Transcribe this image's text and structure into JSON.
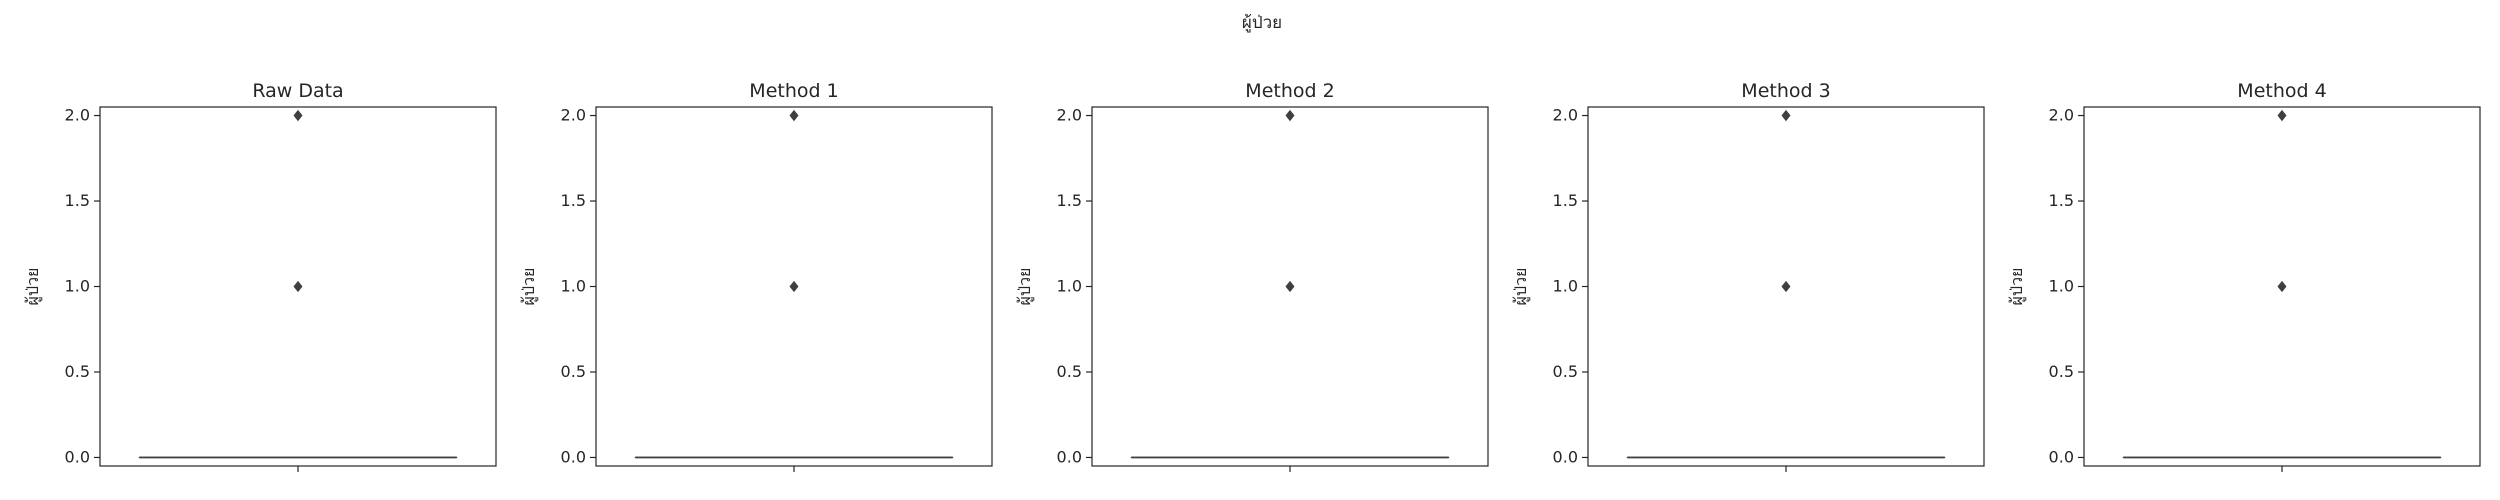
{
  "figure": {
    "suptitle": "ผู้ป่วย"
  },
  "chart_data": [
    {
      "type": "box",
      "title": "Raw Data",
      "xlabel": "",
      "ylabel": "ผู้ป่วย",
      "ylim": [
        -0.05,
        2.05
      ],
      "yticks": [
        0.0,
        0.5,
        1.0,
        1.5,
        2.0
      ],
      "ytick_labels": [
        "0.0",
        "0.5",
        "1.0",
        "1.5",
        "2.0"
      ],
      "box": {
        "q1": 0,
        "median": 0,
        "q3": 0,
        "whisker_low": 0,
        "whisker_high": 0
      },
      "outliers": [
        1.0,
        2.0
      ],
      "grid": false
    },
    {
      "type": "box",
      "title": "Method 1",
      "xlabel": "",
      "ylabel": "ผู้ป่วย",
      "ylim": [
        -0.05,
        2.05
      ],
      "yticks": [
        0.0,
        0.5,
        1.0,
        1.5,
        2.0
      ],
      "ytick_labels": [
        "0.0",
        "0.5",
        "1.0",
        "1.5",
        "2.0"
      ],
      "box": {
        "q1": 0,
        "median": 0,
        "q3": 0,
        "whisker_low": 0,
        "whisker_high": 0
      },
      "outliers": [
        1.0,
        2.0
      ],
      "grid": false
    },
    {
      "type": "box",
      "title": "Method 2",
      "xlabel": "",
      "ylabel": "ผู้ป่วย",
      "ylim": [
        -0.05,
        2.05
      ],
      "yticks": [
        0.0,
        0.5,
        1.0,
        1.5,
        2.0
      ],
      "ytick_labels": [
        "0.0",
        "0.5",
        "1.0",
        "1.5",
        "2.0"
      ],
      "box": {
        "q1": 0,
        "median": 0,
        "q3": 0,
        "whisker_low": 0,
        "whisker_high": 0
      },
      "outliers": [
        1.0,
        2.0
      ],
      "grid": false
    },
    {
      "type": "box",
      "title": "Method 3",
      "xlabel": "",
      "ylabel": "ผู้ป่วย",
      "ylim": [
        -0.05,
        2.05
      ],
      "yticks": [
        0.0,
        0.5,
        1.0,
        1.5,
        2.0
      ],
      "ytick_labels": [
        "0.0",
        "0.5",
        "1.0",
        "1.5",
        "2.0"
      ],
      "box": {
        "q1": 0,
        "median": 0,
        "q3": 0,
        "whisker_low": 0,
        "whisker_high": 0
      },
      "outliers": [
        1.0,
        2.0
      ],
      "grid": false
    },
    {
      "type": "box",
      "title": "Method 4",
      "xlabel": "",
      "ylabel": "ผู้ป่วย",
      "ylim": [
        -0.05,
        2.05
      ],
      "yticks": [
        0.0,
        0.5,
        1.0,
        1.5,
        2.0
      ],
      "ytick_labels": [
        "0.0",
        "0.5",
        "1.0",
        "1.5",
        "2.0"
      ],
      "box": {
        "q1": 0,
        "median": 0,
        "q3": 0,
        "whisker_low": 0,
        "whisker_high": 0
      },
      "outliers": [
        1.0,
        2.0
      ],
      "grid": false
    }
  ],
  "colors": {
    "axes": "#262626",
    "box_line": "#3f3f3f",
    "outlier": "#3f3f3f",
    "background": "#ffffff"
  }
}
